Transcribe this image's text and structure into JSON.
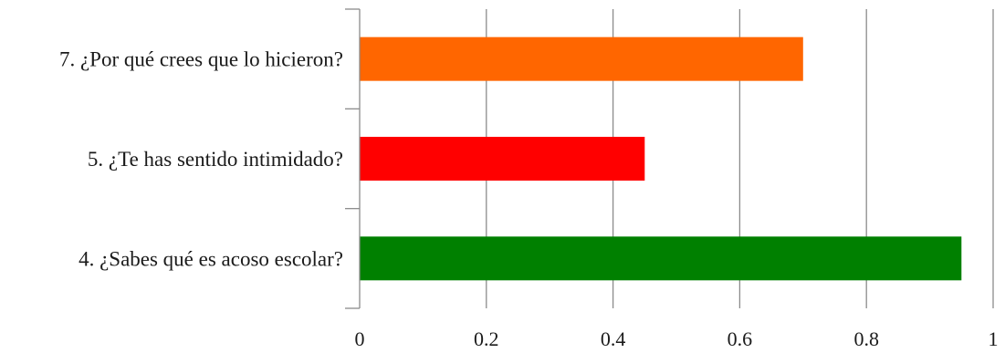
{
  "chart_data": {
    "type": "bar",
    "orientation": "horizontal",
    "categories": [
      "7. ¿Por qué crees que lo hicieron?",
      "5. ¿Te has sentido intimidado?",
      "4. ¿Sabes qué es acoso escolar?"
    ],
    "values": [
      0.7,
      0.45,
      0.95
    ],
    "bar_colors": [
      "#ff6600",
      "#ff0000",
      "#008000"
    ],
    "xlim": [
      0,
      1
    ],
    "x_ticks": [
      0,
      0.2,
      0.4,
      0.6,
      0.8,
      1
    ],
    "x_tick_labels": [
      "0",
      "0.2",
      "0.4",
      "0.6",
      "0.8",
      "1"
    ],
    "grid": "vertical",
    "legend": "none",
    "title": "",
    "xlabel": "",
    "ylabel": ""
  }
}
